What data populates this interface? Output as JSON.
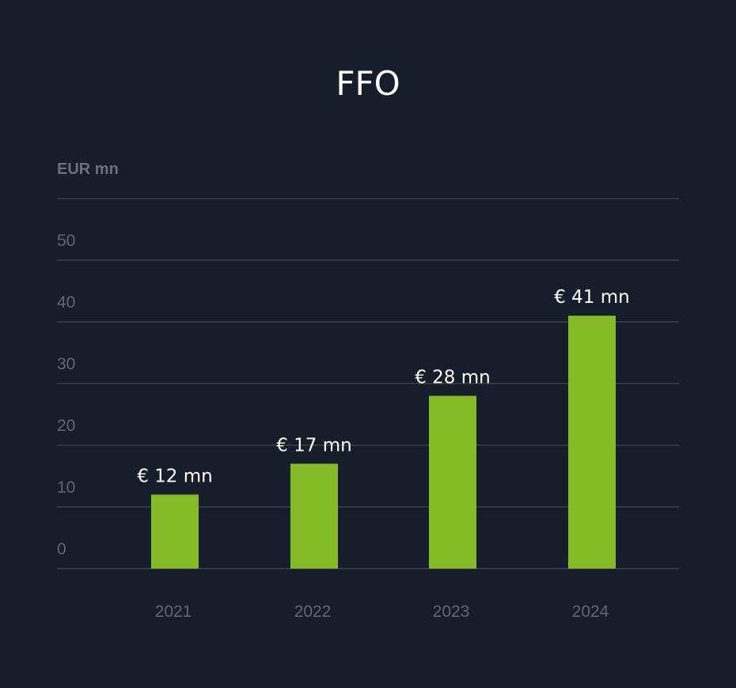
{
  "title": "FFO",
  "colors": {
    "background": "#171e2b",
    "bar": "#85bb26",
    "grid": "#3a414d",
    "muted_text": "#61676f",
    "value_text": "#ffffff"
  },
  "chart_data": {
    "type": "bar",
    "title": "FFO",
    "ylabel": "EUR mn",
    "xlabel": "",
    "categories": [
      "2021",
      "2022",
      "2023",
      "2024"
    ],
    "values": [
      12,
      17,
      28,
      41
    ],
    "value_labels": [
      "€ 12 mn",
      "€ 17 mn",
      "€ 28 mn",
      "€ 41 mn"
    ],
    "y_ticks": [
      0,
      10,
      20,
      30,
      40,
      50
    ],
    "ylim": [
      0,
      60
    ],
    "grid": true,
    "legend": "none"
  }
}
